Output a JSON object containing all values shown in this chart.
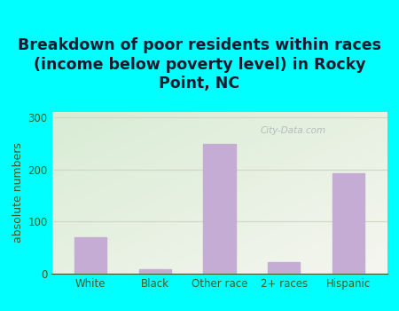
{
  "title": "Breakdown of poor residents within races\n(income below poverty level) in Rocky\nPoint, NC",
  "categories": [
    "White",
    "Black",
    "Other race",
    "2+ races",
    "Hispanic"
  ],
  "values": [
    70,
    8,
    248,
    22,
    193
  ],
  "bar_color": "#c4acd4",
  "ylabel": "absolute numbers",
  "ylim": [
    0,
    310
  ],
  "yticks": [
    0,
    100,
    200,
    300
  ],
  "bg_outer": "#00ffff",
  "title_color": "#1a1a2e",
  "axis_color": "#3a5a2a",
  "watermark": "City-Data.com",
  "title_fontsize": 12.5,
  "ylabel_fontsize": 9,
  "tick_fontsize": 8.5,
  "grid_color": "#d0d8c8"
}
